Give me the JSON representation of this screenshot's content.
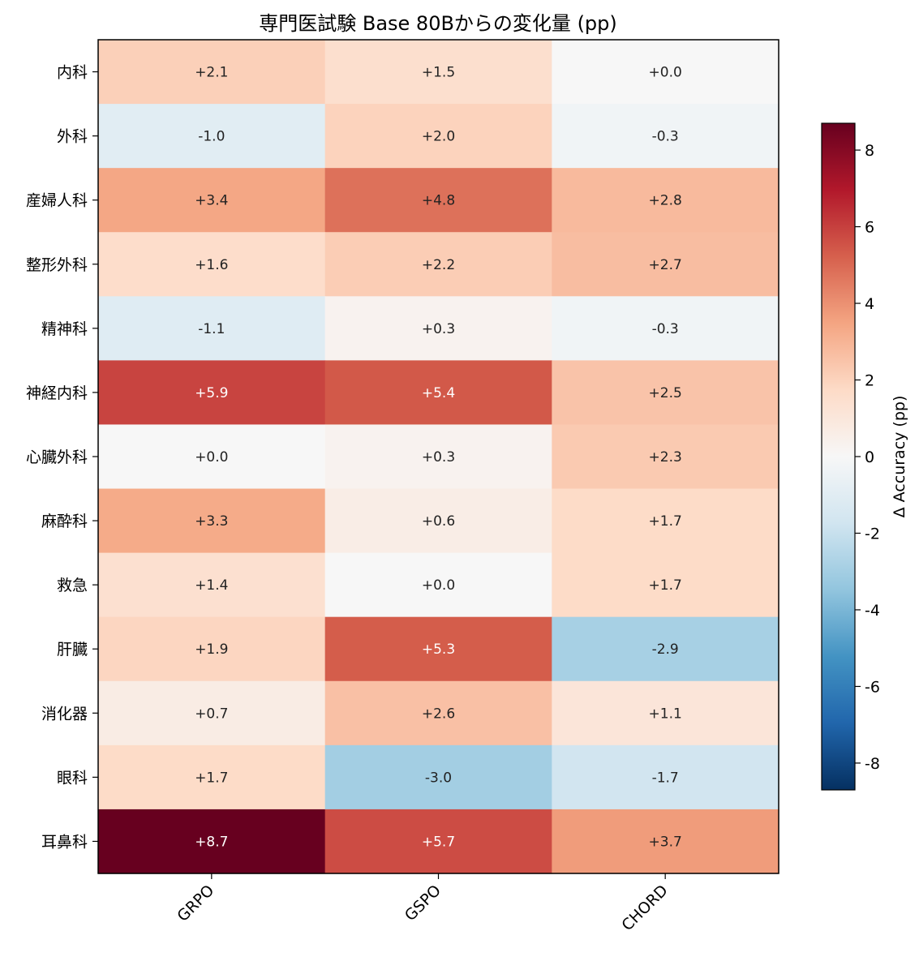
{
  "chart_data": {
    "type": "heatmap",
    "title": "専門医試験 Base 80Bからの変化量 (pp)",
    "columns": [
      "GRPO",
      "GSPO",
      "CHORD"
    ],
    "rows": [
      "内科",
      "外科",
      "産婦人科",
      "整形外科",
      "精神科",
      "神経内科",
      "心臓外科",
      "麻酔科",
      "救急",
      "肝臓",
      "消化器",
      "眼科",
      "耳鼻科"
    ],
    "values": [
      [
        2.1,
        1.5,
        0.0
      ],
      [
        -1.0,
        2.0,
        -0.3
      ],
      [
        3.4,
        4.8,
        2.8
      ],
      [
        1.6,
        2.2,
        2.7
      ],
      [
        -1.1,
        0.3,
        -0.3
      ],
      [
        5.9,
        5.4,
        2.5
      ],
      [
        0.0,
        0.3,
        2.3
      ],
      [
        3.3,
        0.6,
        1.7
      ],
      [
        1.4,
        0.0,
        1.7
      ],
      [
        1.9,
        5.3,
        -2.9
      ],
      [
        0.7,
        2.6,
        1.1
      ],
      [
        1.7,
        -3.0,
        -1.7
      ],
      [
        8.7,
        5.7,
        3.7
      ]
    ],
    "value_labels": [
      [
        "+2.1",
        "+1.5",
        "+0.0"
      ],
      [
        "-1.0",
        "+2.0",
        "-0.3"
      ],
      [
        "+3.4",
        "+4.8",
        "+2.8"
      ],
      [
        "+1.6",
        "+2.2",
        "+2.7"
      ],
      [
        "-1.1",
        "+0.3",
        "-0.3"
      ],
      [
        "+5.9",
        "+5.4",
        "+2.5"
      ],
      [
        "+0.0",
        "+0.3",
        "+2.3"
      ],
      [
        "+3.3",
        "+0.6",
        "+1.7"
      ],
      [
        "+1.4",
        "+0.0",
        "+1.7"
      ],
      [
        "+1.9",
        "+5.3",
        "-2.9"
      ],
      [
        "+0.7",
        "+2.6",
        "+1.1"
      ],
      [
        "+1.7",
        "-3.0",
        "-1.7"
      ],
      [
        "+8.7",
        "+5.7",
        "+3.7"
      ]
    ],
    "colormap": "RdBu_r",
    "colorbar": {
      "label": "Δ Accuracy (pp)",
      "range": [
        -8.7,
        8.7
      ],
      "ticks": [
        8,
        6,
        4,
        2,
        0,
        -2,
        -4,
        -6,
        -8
      ]
    }
  }
}
